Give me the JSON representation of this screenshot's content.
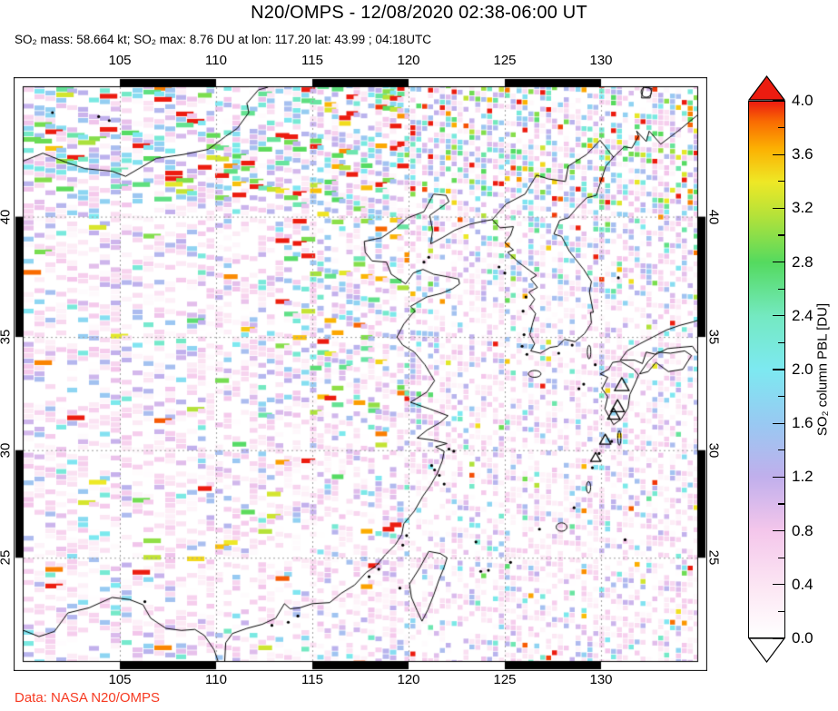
{
  "header": {
    "title": "N20/OMPS - 12/08/2020 02:38-06:00 UT",
    "subtitle": "SO₂ mass: 58.664 kt; SO₂ max: 8.76 DU at lon: 117.20 lat: 43.99 ; 04:18UTC"
  },
  "footer": {
    "credit": "Data: NASA N20/OMPS",
    "color": "#f63a22"
  },
  "chart_data": {
    "type": "heatmap",
    "projection": "mercator",
    "title": "N20/OMPS - 12/08/2020 02:38-06:00 UT",
    "so2_mass_kt": 58.664,
    "so2_max": {
      "value_du": 8.76,
      "lon": 117.2,
      "lat": 43.99,
      "time": "04:18UTC"
    },
    "lon_range": [
      100,
      135
    ],
    "lat_range": [
      20,
      45
    ],
    "lon_ticks": [
      "105",
      "110",
      "115",
      "120",
      "125",
      "130"
    ],
    "lon_tick_values": [
      105,
      110,
      115,
      120,
      125,
      130
    ],
    "lat_ticks": [
      "25",
      "30",
      "35",
      "40"
    ],
    "lat_tick_values": [
      25,
      30,
      35,
      40
    ],
    "grid": true,
    "grid_color": "#a0a0a0",
    "frame_black_bands_lon": [
      [
        105,
        110
      ],
      [
        115,
        120
      ],
      [
        125,
        130
      ]
    ],
    "frame_black_bands_lat": [
      [
        25,
        30
      ],
      [
        35,
        40
      ]
    ],
    "colorbar": {
      "label": "SO₂ column PBL [DU]",
      "min": 0.0,
      "max": 4.0,
      "tick_labels": [
        "0.0",
        "0.4",
        "0.8",
        "1.2",
        "1.6",
        "2.0",
        "2.4",
        "2.8",
        "3.2",
        "3.6",
        "4.0"
      ],
      "minor_step": 0.2,
      "overflow_color": "#ec1c10",
      "underflow_color": "#ffffff",
      "stops": [
        [
          0.0,
          "#ffffff"
        ],
        [
          0.35,
          "#fce8f4"
        ],
        [
          0.8,
          "#f4c6eb"
        ],
        [
          1.2,
          "#c0afec"
        ],
        [
          1.6,
          "#98c9f2"
        ],
        [
          2.0,
          "#7de9f1"
        ],
        [
          2.4,
          "#74e9c1"
        ],
        [
          2.8,
          "#54da5f"
        ],
        [
          3.15,
          "#b5e239"
        ],
        [
          3.4,
          "#eee826"
        ],
        [
          3.65,
          "#fcb002"
        ],
        [
          3.85,
          "#f96b02"
        ],
        [
          4.0,
          "#ec1c10"
        ]
      ]
    },
    "noise_field": {
      "seed": 987241,
      "tile_height": 6.1,
      "west_slope": 0.16,
      "east_slope": 0.07,
      "seam_lon": [
        113.5,
        121.5
      ],
      "north_band_lat": 40.5,
      "coverage": 0.58
    },
    "markers": {
      "volcano_triangles": [
        [
          131.08,
          32.88
        ],
        [
          130.86,
          31.93
        ],
        [
          130.66,
          31.58
        ],
        [
          130.22,
          30.44
        ],
        [
          129.72,
          29.64
        ]
      ]
    },
    "coastlines": {
      "china": [
        [
          100,
          21.5
        ],
        [
          100.8,
          21.2
        ],
        [
          101.6,
          21.45
        ],
        [
          102.3,
          22.35
        ],
        [
          103.4,
          22.6
        ],
        [
          104.6,
          23.1
        ],
        [
          105.5,
          23.0
        ],
        [
          106.2,
          22.75
        ],
        [
          106.6,
          22.1
        ],
        [
          107.4,
          21.6
        ],
        [
          108.2,
          21.5
        ],
        [
          108.9,
          21.55
        ],
        [
          109.4,
          21.25
        ],
        [
          109.9,
          20.55
        ],
        [
          110.1,
          20.0
        ]
      ],
      "china2": [
        [
          110.45,
          20.0
        ],
        [
          110.5,
          20.9
        ],
        [
          110.85,
          21.35
        ],
        [
          111.6,
          21.6
        ],
        [
          112.4,
          21.8
        ],
        [
          113.1,
          22.1
        ],
        [
          113.55,
          22.8
        ],
        [
          113.85,
          22.55
        ],
        [
          114.35,
          22.6
        ],
        [
          115.0,
          22.8
        ],
        [
          115.9,
          22.85
        ],
        [
          116.5,
          23.3
        ],
        [
          117.2,
          23.7
        ],
        [
          117.8,
          24.3
        ],
        [
          118.3,
          24.6
        ],
        [
          118.8,
          25.15
        ],
        [
          119.3,
          25.6
        ],
        [
          119.65,
          26.1
        ],
        [
          119.75,
          26.6
        ],
        [
          120.3,
          27.2
        ],
        [
          120.75,
          27.9
        ],
        [
          121.15,
          28.4
        ],
        [
          121.5,
          28.95
        ],
        [
          121.75,
          29.5
        ],
        [
          121.85,
          29.95
        ],
        [
          121.4,
          30.15
        ],
        [
          122.0,
          30.3
        ],
        [
          121.3,
          30.45
        ],
        [
          120.45,
          30.55
        ],
        [
          120.95,
          30.9
        ],
        [
          121.65,
          31.25
        ],
        [
          122.05,
          31.55
        ],
        [
          121.1,
          31.85
        ],
        [
          120.1,
          32.15
        ],
        [
          120.95,
          32.6
        ],
        [
          121.35,
          33.1
        ],
        [
          120.85,
          33.8
        ],
        [
          120.3,
          34.35
        ],
        [
          119.7,
          34.65
        ],
        [
          119.4,
          35.0
        ],
        [
          119.75,
          35.55
        ],
        [
          120.2,
          36.0
        ],
        [
          120.35,
          36.1
        ],
        [
          120.1,
          36.3
        ],
        [
          120.95,
          36.7
        ],
        [
          121.7,
          36.85
        ],
        [
          122.3,
          37.05
        ],
        [
          122.65,
          37.25
        ],
        [
          122.6,
          37.45
        ],
        [
          122.0,
          37.55
        ],
        [
          121.3,
          37.65
        ],
        [
          120.75,
          37.85
        ],
        [
          120.25,
          37.7
        ],
        [
          119.85,
          37.25
        ],
        [
          119.1,
          37.65
        ],
        [
          118.85,
          38.15
        ],
        [
          118.1,
          38.2
        ],
        [
          117.75,
          38.55
        ],
        [
          117.7,
          39.0
        ],
        [
          118.6,
          39.15
        ],
        [
          119.35,
          39.55
        ],
        [
          119.95,
          39.95
        ],
        [
          120.8,
          40.2
        ],
        [
          121.3,
          40.9
        ],
        [
          121.95,
          40.85
        ],
        [
          122.1,
          40.6
        ],
        [
          121.1,
          40.05
        ],
        [
          121.25,
          39.45
        ],
        [
          121.15,
          38.9
        ],
        [
          121.75,
          39.15
        ],
        [
          122.4,
          39.45
        ],
        [
          123.2,
          39.7
        ],
        [
          123.9,
          39.82
        ],
        [
          124.35,
          39.88
        ]
      ],
      "korea": [
        [
          124.35,
          39.88
        ],
        [
          124.75,
          39.55
        ],
        [
          125.45,
          39.6
        ],
        [
          125.3,
          39.25
        ],
        [
          125.0,
          38.95
        ],
        [
          125.45,
          38.65
        ],
        [
          125.15,
          38.55
        ],
        [
          125.7,
          38.15
        ],
        [
          126.3,
          37.8
        ],
        [
          126.65,
          37.6
        ],
        [
          126.35,
          37.45
        ],
        [
          126.7,
          37.1
        ],
        [
          126.25,
          36.9
        ],
        [
          126.55,
          36.6
        ],
        [
          126.3,
          36.3
        ],
        [
          126.6,
          36.0
        ],
        [
          126.45,
          35.6
        ],
        [
          126.3,
          35.1
        ],
        [
          126.55,
          34.7
        ],
        [
          126.35,
          34.4
        ],
        [
          126.85,
          34.3
        ],
        [
          127.35,
          34.55
        ],
        [
          127.75,
          34.6
        ],
        [
          128.1,
          34.9
        ],
        [
          128.65,
          34.8
        ],
        [
          129.15,
          35.15
        ],
        [
          129.5,
          35.6
        ],
        [
          129.45,
          36.05
        ],
        [
          129.6,
          36.05
        ],
        [
          129.4,
          36.9
        ],
        [
          129.5,
          37.35
        ],
        [
          129.1,
          37.85
        ],
        [
          128.65,
          38.3
        ],
        [
          128.35,
          38.6
        ],
        [
          127.95,
          39.2
        ],
        [
          127.55,
          39.3
        ],
        [
          127.85,
          39.85
        ],
        [
          128.3,
          39.95
        ],
        [
          128.75,
          40.35
        ],
        [
          129.25,
          40.75
        ],
        [
          129.75,
          40.85
        ],
        [
          130.25,
          42.0
        ],
        [
          130.65,
          42.35
        ]
      ],
      "russia": [
        [
          130.65,
          42.35
        ],
        [
          131.2,
          42.75
        ],
        [
          131.6,
          42.7
        ],
        [
          131.95,
          43.15
        ],
        [
          131.85,
          43.35
        ],
        [
          132.35,
          42.95
        ],
        [
          132.5,
          43.35
        ],
        [
          133.1,
          42.85
        ],
        [
          134.0,
          43.35
        ],
        [
          135.0,
          43.95
        ]
      ],
      "yalu_tumen": [
        [
          124.35,
          39.88
        ],
        [
          125.05,
          40.5
        ],
        [
          126.05,
          40.9
        ],
        [
          126.65,
          41.65
        ],
        [
          127.25,
          41.5
        ],
        [
          128.15,
          41.4
        ],
        [
          128.3,
          42.0
        ],
        [
          129.25,
          42.45
        ],
        [
          129.95,
          43.0
        ],
        [
          130.65,
          42.35
        ]
      ],
      "mongolia_border": [
        [
          100,
          42.2
        ],
        [
          101.0,
          42.5
        ],
        [
          102.2,
          42.15
        ],
        [
          103.2,
          41.9
        ],
        [
          104.6,
          41.8
        ],
        [
          105.3,
          41.6
        ],
        [
          106.9,
          42.3
        ],
        [
          108.3,
          42.45
        ],
        [
          109.6,
          42.65
        ],
        [
          110.5,
          43.15
        ],
        [
          111.1,
          43.45
        ],
        [
          111.7,
          44.05
        ],
        [
          111.6,
          44.4
        ],
        [
          112.2,
          44.9
        ],
        [
          112.7,
          45.0
        ]
      ],
      "taiwan": [
        [
          121.05,
          25.3
        ],
        [
          121.65,
          25.2
        ],
        [
          122.0,
          25.0
        ],
        [
          121.85,
          24.55
        ],
        [
          121.6,
          24.0
        ],
        [
          121.3,
          23.2
        ],
        [
          121.0,
          22.5
        ],
        [
          120.7,
          21.95
        ],
        [
          120.45,
          22.45
        ],
        [
          120.15,
          23.1
        ],
        [
          120.05,
          23.75
        ],
        [
          120.6,
          24.55
        ],
        [
          121.05,
          25.3
        ]
      ],
      "kyushu": [
        [
          130.35,
          33.25
        ],
        [
          130.05,
          32.75
        ],
        [
          130.35,
          32.4
        ],
        [
          130.2,
          31.85
        ],
        [
          130.65,
          31.15
        ],
        [
          131.05,
          31.4
        ],
        [
          131.4,
          31.9
        ],
        [
          131.5,
          32.5
        ],
        [
          131.75,
          32.95
        ],
        [
          131.95,
          33.35
        ],
        [
          131.7,
          33.6
        ],
        [
          131.0,
          33.95
        ],
        [
          130.6,
          33.9
        ],
        [
          130.4,
          33.6
        ],
        [
          129.95,
          33.4
        ],
        [
          130.35,
          33.25
        ]
      ],
      "shikoku": [
        [
          132.0,
          33.4
        ],
        [
          132.45,
          33.5
        ],
        [
          132.85,
          33.9
        ],
        [
          133.5,
          33.5
        ],
        [
          134.25,
          33.6
        ],
        [
          134.7,
          34.2
        ],
        [
          134.35,
          34.4
        ],
        [
          133.6,
          34.3
        ],
        [
          132.95,
          34.35
        ],
        [
          132.45,
          33.95
        ],
        [
          132.0,
          33.4
        ]
      ],
      "honshu": [
        [
          135.0,
          34.3
        ],
        [
          134.75,
          34.6
        ],
        [
          134.05,
          34.55
        ],
        [
          133.45,
          34.5
        ],
        [
          132.85,
          34.25
        ],
        [
          132.35,
          34.35
        ],
        [
          132.15,
          33.85
        ],
        [
          131.75,
          34.0
        ],
        [
          131.0,
          34.0
        ],
        [
          131.35,
          34.4
        ],
        [
          132.0,
          34.7
        ],
        [
          132.7,
          35.0
        ],
        [
          133.4,
          35.3
        ],
        [
          134.1,
          35.5
        ],
        [
          134.8,
          35.65
        ],
        [
          135.0,
          35.7
        ]
      ],
      "lake_khanka": [
        [
          132.1,
          44.6
        ],
        [
          132.55,
          44.6
        ],
        [
          132.65,
          44.95
        ],
        [
          132.2,
          45.0
        ],
        [
          132.1,
          44.6
        ]
      ],
      "island_dots": [
        [
          120.8,
          38.15
        ],
        [
          121.05,
          38.35
        ],
        [
          122.1,
          30.05
        ],
        [
          122.35,
          29.95
        ],
        [
          121.2,
          29.3
        ],
        [
          121.35,
          29.1
        ],
        [
          121.6,
          28.85
        ],
        [
          121.85,
          28.45
        ],
        [
          119.9,
          26.05
        ],
        [
          119.7,
          25.6
        ],
        [
          118.45,
          24.45
        ],
        [
          117.95,
          24.1
        ],
        [
          113.75,
          21.9
        ],
        [
          114.25,
          22.2
        ],
        [
          112.9,
          21.75
        ],
        [
          119.55,
          23.55
        ],
        [
          125.0,
          37.7
        ],
        [
          124.7,
          37.95
        ],
        [
          126.1,
          36.7
        ],
        [
          125.95,
          36.1
        ],
        [
          126.0,
          35.1
        ],
        [
          125.9,
          34.6
        ],
        [
          126.15,
          34.25
        ],
        [
          127.8,
          34.3
        ],
        [
          128.5,
          34.65
        ],
        [
          129.7,
          33.8
        ],
        [
          128.85,
          32.75
        ],
        [
          129.1,
          32.95
        ],
        [
          130.55,
          30.4
        ],
        [
          129.9,
          29.85
        ],
        [
          129.55,
          29.2
        ],
        [
          126.8,
          26.35
        ],
        [
          125.3,
          24.78
        ],
        [
          124.15,
          24.4
        ],
        [
          123.75,
          24.35
        ],
        [
          123.5,
          25.75
        ],
        [
          131.25,
          25.85
        ],
        [
          130.9,
          37.5
        ],
        [
          128.6,
          27.35
        ],
        [
          103.9,
          43.9
        ],
        [
          104.45,
          43.75
        ],
        [
          101.5,
          44.05
        ],
        [
          106.3,
          22.9
        ]
      ],
      "island_ellipses": [
        [
          126.55,
          33.4,
          0.33,
          0.13
        ],
        [
          129.38,
          34.35,
          0.09,
          0.26
        ],
        [
          129.35,
          28.3,
          0.11,
          0.22
        ],
        [
          127.95,
          26.45,
          0.28,
          0.16
        ],
        [
          130.95,
          30.55,
          0.08,
          0.28
        ],
        [
          132.35,
          44.82,
          0.27,
          0.2
        ]
      ]
    }
  }
}
